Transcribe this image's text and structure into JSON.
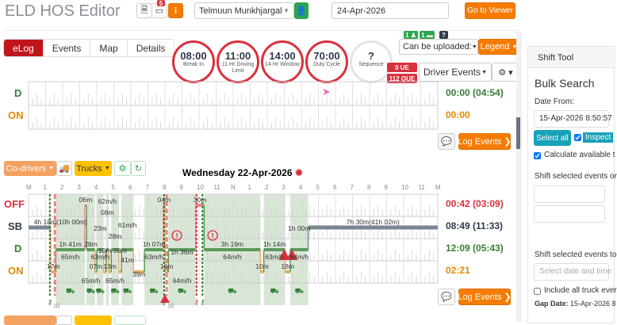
{
  "header": {
    "title": "ELD HOS Editor",
    "notes_badge": "5",
    "driver": "Telmuun Munkhjargal",
    "date": "24-Apr-2026",
    "go_to_viewer": "Go to Viewer"
  },
  "tabs": [
    {
      "label": "eLog",
      "active": true
    },
    {
      "label": "Events"
    },
    {
      "label": "Map"
    },
    {
      "label": "Details"
    }
  ],
  "gauges": [
    {
      "value": "08:00",
      "label": "Break In"
    },
    {
      "value": "11:00",
      "label": "11 Hr Driving Limit"
    },
    {
      "value": "14:00",
      "label": "14 Hr Window"
    },
    {
      "value": "70:00",
      "label": "Duty Cycle"
    },
    {
      "value": "?",
      "label": "Sequence"
    }
  ],
  "status_badges": {
    "codrivers": "1",
    "trucks": "1",
    "unknown": "?",
    "ue": "0 UE",
    "oue": "112 OUE"
  },
  "controls": {
    "can_be_uploaded": "Can be uploaded:",
    "legend": "Legend",
    "driver_events": "Driver Events"
  },
  "top_log": {
    "rows": [
      {
        "label": "D",
        "total": "00:00 (04:54)",
        "color": "#3a7d3a"
      },
      {
        "label": "ON",
        "total": "00:00",
        "color": "#e08a00"
      }
    ],
    "log_events": "Log Events"
  },
  "day_log": {
    "codrivers": "Co-drivers",
    "trucks": "Trucks",
    "date_title": "Wednesday 22-Apr-2026",
    "hour_labels": [
      "M",
      "1",
      "2",
      "3",
      "4",
      "5",
      "6",
      "7",
      "8",
      "9",
      "10",
      "11",
      "N",
      "1",
      "2",
      "3",
      "4",
      "5",
      "6",
      "7",
      "8",
      "9",
      "10",
      "11",
      "M"
    ],
    "rows": [
      {
        "label": "OFF",
        "total": "00:42 (03:09)",
        "color": "#d9313c"
      },
      {
        "label": "SB",
        "total": "08:49 (11:33)",
        "color": "#2d3a4a"
      },
      {
        "label": "D",
        "total": "12:09 (05:43)",
        "color": "#3a7d3a"
      },
      {
        "label": "ON",
        "total": "02:21",
        "color": "#e08a00"
      }
    ],
    "events": [
      {
        "status": "SB",
        "start": 0,
        "end": 1.3,
        "label": "4h 18m(10h 00m)"
      },
      {
        "status": "ON",
        "start": 1.3,
        "end": 1.6,
        "label": "17m"
      },
      {
        "status": "D",
        "start": 1.6,
        "end": 3.3,
        "label": "1h 41m",
        "speed": "65m/h"
      },
      {
        "status": "OFF",
        "start": 3.3,
        "end": 3.4,
        "label": "06m"
      },
      {
        "status": "D",
        "start": 3.4,
        "end": 3.9,
        "label": "28m",
        "speed": "65m/h"
      },
      {
        "status": "ON",
        "start": 3.9,
        "end": 4.0,
        "label": "07m"
      },
      {
        "status": "D",
        "start": 4.0,
        "end": 4.4,
        "label": "23m",
        "speed": "63m/h"
      },
      {
        "status": "ON",
        "start": 4.4,
        "end": 4.55,
        "label": "10m"
      },
      {
        "status": "D",
        "start": 4.55,
        "end": 4.7,
        "label": "08m",
        "speed": "62m/h"
      },
      {
        "status": "ON",
        "start": 4.7,
        "end": 4.85,
        "label": "13m"
      },
      {
        "status": "D",
        "start": 4.85,
        "end": 5.3,
        "label": "28m",
        "speed": "65m/h"
      },
      {
        "status": "ON",
        "start": 5.3,
        "end": 5.45,
        "label": "08m"
      },
      {
        "status": "D",
        "start": 5.45,
        "end": 6.15,
        "label": "41m",
        "speed": "61m/h"
      },
      {
        "status": "ON",
        "start": 6.15,
        "end": 6.8,
        "label": "39m"
      },
      {
        "status": "D",
        "start": 6.8,
        "end": 7.9,
        "label": "1h 07m",
        "speed": "63m/h"
      },
      {
        "status": "OFF",
        "start": 7.9,
        "end": 8.0,
        "label": "04m"
      },
      {
        "status": "ON",
        "start": 8.0,
        "end": 8.2,
        "label": "16m"
      },
      {
        "status": "D",
        "start": 8.2,
        "end": 9.8,
        "label": "1h 36m",
        "speed": "64m/h"
      },
      {
        "status": "OFF",
        "start": 9.8,
        "end": 10.3,
        "label": "30m"
      },
      {
        "status": "D",
        "start": 10.3,
        "end": 13.6,
        "label": "3h 19m",
        "speed": "64m/h"
      },
      {
        "status": "ON",
        "start": 13.6,
        "end": 13.8,
        "label": "10m"
      },
      {
        "status": "D",
        "start": 13.8,
        "end": 15.05,
        "label": "1h 14m",
        "speed": "63m/h"
      },
      {
        "status": "ON",
        "start": 15.05,
        "end": 15.35,
        "label": "18m"
      },
      {
        "status": "D",
        "start": 15.35,
        "end": 16.4,
        "label": "1h 00m",
        "speed": "64m/h"
      },
      {
        "status": "SB",
        "start": 16.4,
        "end": 24,
        "label": "7h 30m(41h 02m)"
      }
    ],
    "markers": [
      {
        "hour": 1.25,
        "type": "login",
        "note": "IR"
      },
      {
        "hour": 7.95,
        "type": "login",
        "note": "IR"
      },
      {
        "hour": 9.85,
        "type": "logout"
      },
      {
        "hour": 10.2,
        "type": "login"
      }
    ],
    "log_events": "Log Events"
  },
  "shift_tool": {
    "header": "Shift Tool",
    "title": "Bulk Search",
    "date_from_label": "Date From:",
    "date_from": "15-Apr-2026 8:50:57",
    "select_all": "Select all",
    "inspect": "Inspect",
    "calc_label": "Calculate available t",
    "shift_on_label": "Shift selected events or",
    "shift_to_label": "Shift selected events to",
    "date_placeholder": "Select date and time",
    "include_label": "Include all truck ever",
    "gap_label": "Gap Date:",
    "gap_value": "15-Apr-2026 8"
  },
  "colors": {
    "accent": "#f57c00",
    "danger": "#d9313c",
    "drive": "#3a7d3a",
    "on": "#e08a00",
    "sb": "#7a8690"
  }
}
